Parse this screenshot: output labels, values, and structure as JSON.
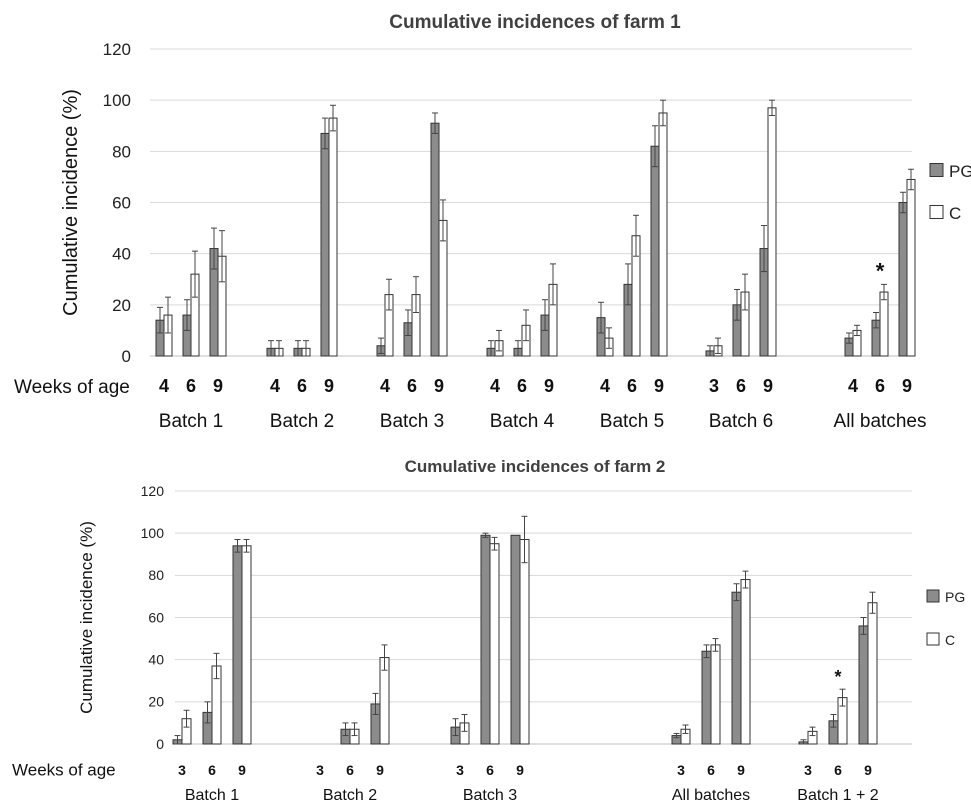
{
  "chart_data": [
    {
      "type": "bar",
      "title": "Cumulative incidences of farm 1",
      "xlabel": "Weeks of age",
      "ylabel": "Cumulative incidence (%)",
      "ylim": [
        0,
        120
      ],
      "yticks": [
        0,
        20,
        40,
        60,
        80,
        100,
        120
      ],
      "grid": true,
      "legend_position": "right",
      "legend": [
        {
          "label": "PG",
          "color": "#8c8c8c"
        },
        {
          "label": "C",
          "color": "#ffffff"
        }
      ],
      "groups": [
        {
          "label": "Batch 1",
          "ages": [
            "4",
            "6",
            "9"
          ],
          "PG": [
            14,
            16,
            42
          ],
          "C": [
            16,
            32,
            39
          ],
          "PG_err": [
            5,
            6,
            8
          ],
          "C_err": [
            7,
            9,
            10
          ],
          "sig": []
        },
        {
          "label": "Batch 2",
          "ages": [
            "4",
            "6",
            "9"
          ],
          "PG": [
            3,
            3,
            87
          ],
          "C": [
            3,
            3,
            93
          ],
          "PG_err": [
            3,
            3,
            6
          ],
          "C_err": [
            3,
            3,
            5
          ],
          "sig": []
        },
        {
          "label": "Batch 3",
          "ages": [
            "4",
            "6",
            "9"
          ],
          "PG": [
            4,
            13,
            91
          ],
          "C": [
            24,
            24,
            53
          ],
          "PG_err": [
            3,
            5,
            4
          ],
          "C_err": [
            6,
            7,
            8
          ],
          "sig": []
        },
        {
          "label": "Batch 4",
          "ages": [
            "4",
            "6",
            "9"
          ],
          "PG": [
            3,
            3,
            16
          ],
          "C": [
            6,
            12,
            28
          ],
          "PG_err": [
            3,
            3,
            6
          ],
          "C_err": [
            4,
            6,
            8
          ],
          "sig": []
        },
        {
          "label": "Batch 5",
          "ages": [
            "4",
            "6",
            "9"
          ],
          "PG": [
            15,
            28,
            82
          ],
          "C": [
            7,
            47,
            95
          ],
          "PG_err": [
            6,
            8,
            8
          ],
          "C_err": [
            4,
            8,
            5
          ],
          "sig": []
        },
        {
          "label": "Batch 6",
          "ages": [
            "3",
            "6",
            "9"
          ],
          "PG": [
            2,
            20,
            42
          ],
          "C": [
            4,
            25,
            97
          ],
          "PG_err": [
            2,
            6,
            9
          ],
          "C_err": [
            3,
            7,
            3
          ],
          "sig": []
        },
        {
          "label": "All batches",
          "ages": [
            "4",
            "6",
            "9"
          ],
          "PG": [
            7,
            14,
            60
          ],
          "C": [
            10,
            25,
            69
          ],
          "PG_err": [
            2,
            3,
            4
          ],
          "C_err": [
            2,
            3,
            4
          ],
          "sig": [
            "6"
          ]
        }
      ]
    },
    {
      "type": "bar",
      "title": "Cumulative incidences of farm 2",
      "xlabel": "Weeks of age",
      "ylabel": "Cumulative incidence (%)",
      "ylim": [
        0,
        120
      ],
      "yticks": [
        0,
        20,
        40,
        60,
        80,
        100,
        120
      ],
      "grid": true,
      "legend_position": "right",
      "legend": [
        {
          "label": "PG",
          "color": "#8c8c8c"
        },
        {
          "label": "C",
          "color": "#ffffff"
        }
      ],
      "groups": [
        {
          "label": "Batch 1",
          "ages": [
            "3",
            "6",
            "9"
          ],
          "PG": [
            2,
            15,
            94
          ],
          "C": [
            12,
            37,
            94
          ],
          "PG_err": [
            2,
            5,
            3
          ],
          "C_err": [
            4,
            6,
            3
          ],
          "sig": []
        },
        {
          "label": "Batch 2",
          "ages": [
            "3",
            "6",
            "9"
          ],
          "PG": [
            null,
            7,
            19
          ],
          "C": [
            null,
            7,
            41
          ],
          "PG_err": [
            0,
            3,
            5
          ],
          "C_err": [
            0,
            3,
            6
          ],
          "sig": []
        },
        {
          "label": "Batch 3",
          "ages": [
            "3",
            "6",
            "9"
          ],
          "PG": [
            8,
            99,
            99
          ],
          "C": [
            10,
            95,
            97
          ],
          "PG_err": [
            4,
            1,
            0
          ],
          "C_err": [
            4,
            3,
            11
          ],
          "sig": []
        },
        {
          "label": "All batches",
          "ages": [
            "3",
            "6",
            "9"
          ],
          "PG": [
            4,
            44,
            72
          ],
          "C": [
            7,
            47,
            78
          ],
          "PG_err": [
            1,
            3,
            4
          ],
          "C_err": [
            2,
            3,
            4
          ],
          "sig": []
        },
        {
          "label": "Batch 1 + 2",
          "ages": [
            "3",
            "6",
            "9"
          ],
          "PG": [
            1,
            11,
            56
          ],
          "C": [
            6,
            22,
            67
          ],
          "PG_err": [
            1,
            3,
            4
          ],
          "C_err": [
            2,
            4,
            5
          ],
          "sig": [
            "6"
          ]
        }
      ]
    }
  ]
}
